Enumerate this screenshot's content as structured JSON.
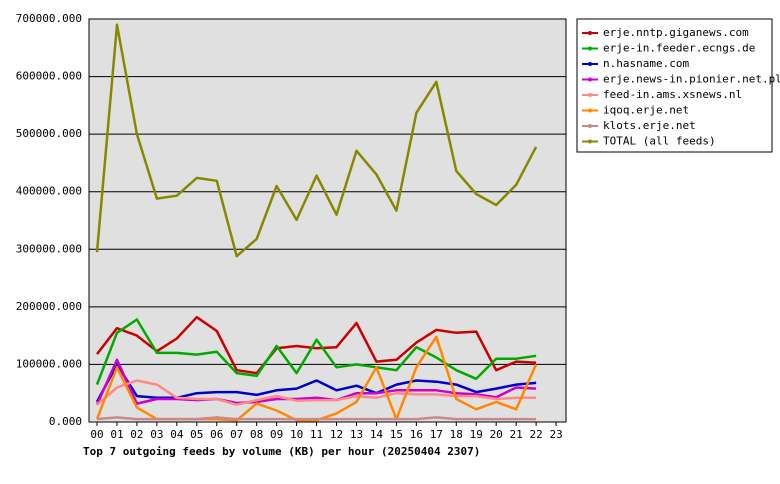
{
  "chart_data": {
    "type": "line",
    "title": "Top 7 outgoing feeds by volume (KB) per hour (20250404 2307)",
    "categories": [
      "00",
      "01",
      "02",
      "03",
      "04",
      "05",
      "06",
      "07",
      "08",
      "09",
      "10",
      "11",
      "12",
      "13",
      "14",
      "15",
      "16",
      "17",
      "18",
      "19",
      "20",
      "21",
      "22",
      "23"
    ],
    "ylim": [
      0,
      700000
    ],
    "yticks": [
      {
        "value": 0,
        "label": "0.000"
      },
      {
        "value": 100000,
        "label": "100000.000"
      },
      {
        "value": 200000,
        "label": "200000.000"
      },
      {
        "value": 300000,
        "label": "300000.000"
      },
      {
        "value": 400000,
        "label": "400000.000"
      },
      {
        "value": 500000,
        "label": "500000.000"
      },
      {
        "value": 600000,
        "label": "600000.000"
      },
      {
        "value": 700000,
        "label": "700000.000"
      }
    ],
    "grid": true,
    "legend": "right",
    "series": [
      {
        "name": "erje.nntp.giganews.com",
        "color": "#cc0000",
        "values": [
          118000,
          163000,
          150000,
          123000,
          145000,
          182000,
          158000,
          90000,
          85000,
          128000,
          132000,
          128000,
          130000,
          172000,
          105000,
          108000,
          138000,
          160000,
          155000,
          157000,
          90000,
          105000,
          103000,
          null
        ]
      },
      {
        "name": "erje-in.feeder.ecngs.de",
        "color": "#00aa00",
        "values": [
          65000,
          155000,
          178000,
          120000,
          120000,
          117000,
          122000,
          85000,
          80000,
          132000,
          85000,
          143000,
          95000,
          100000,
          95000,
          90000,
          130000,
          112000,
          90000,
          75000,
          110000,
          110000,
          115000,
          null
        ]
      },
      {
        "name": "n.hasname.com",
        "color": "#0000cc",
        "values": [
          35000,
          100000,
          45000,
          42000,
          42000,
          50000,
          52000,
          52000,
          47000,
          55000,
          58000,
          72000,
          55000,
          63000,
          50000,
          65000,
          72000,
          70000,
          65000,
          52000,
          58000,
          65000,
          68000,
          null
        ]
      },
      {
        "name": "erje.news-in.pionier.net.pl",
        "color": "#cc00cc",
        "values": [
          30000,
          108000,
          32000,
          40000,
          40000,
          38000,
          40000,
          33000,
          35000,
          40000,
          40000,
          42000,
          38000,
          50000,
          50000,
          55000,
          55000,
          55000,
          50000,
          48000,
          43000,
          60000,
          58000,
          null
        ]
      },
      {
        "name": "feed-in.ams.xsnews.nl",
        "color": "#ff8888",
        "values": [
          30000,
          60000,
          72000,
          65000,
          42000,
          40000,
          40000,
          30000,
          38000,
          45000,
          37000,
          38000,
          38000,
          45000,
          42000,
          50000,
          48000,
          48000,
          45000,
          45000,
          40000,
          42000,
          42000,
          null
        ]
      },
      {
        "name": "iqoq.erje.net",
        "color": "#ff8800",
        "values": [
          5000,
          95000,
          25000,
          5000,
          5000,
          5000,
          5000,
          3000,
          32000,
          20000,
          3000,
          3000,
          15000,
          35000,
          95000,
          5000,
          95000,
          148000,
          40000,
          22000,
          35000,
          22000,
          100000,
          null
        ]
      },
      {
        "name": "klots.erje.net",
        "color": "#cc8888",
        "values": [
          5000,
          8000,
          5000,
          5000,
          5000,
          5000,
          8000,
          5000,
          5000,
          5000,
          5000,
          5000,
          5000,
          5000,
          5000,
          5000,
          5000,
          8000,
          5000,
          5000,
          5000,
          5000,
          5000,
          null
        ]
      },
      {
        "name": "TOTAL (all feeds)",
        "color": "#888800",
        "values": [
          295000,
          690000,
          500000,
          388000,
          393000,
          424000,
          419000,
          288000,
          318000,
          410000,
          351000,
          428000,
          360000,
          471000,
          430000,
          367000,
          537000,
          591000,
          436000,
          396000,
          377000,
          412000,
          478000,
          null
        ]
      }
    ]
  }
}
